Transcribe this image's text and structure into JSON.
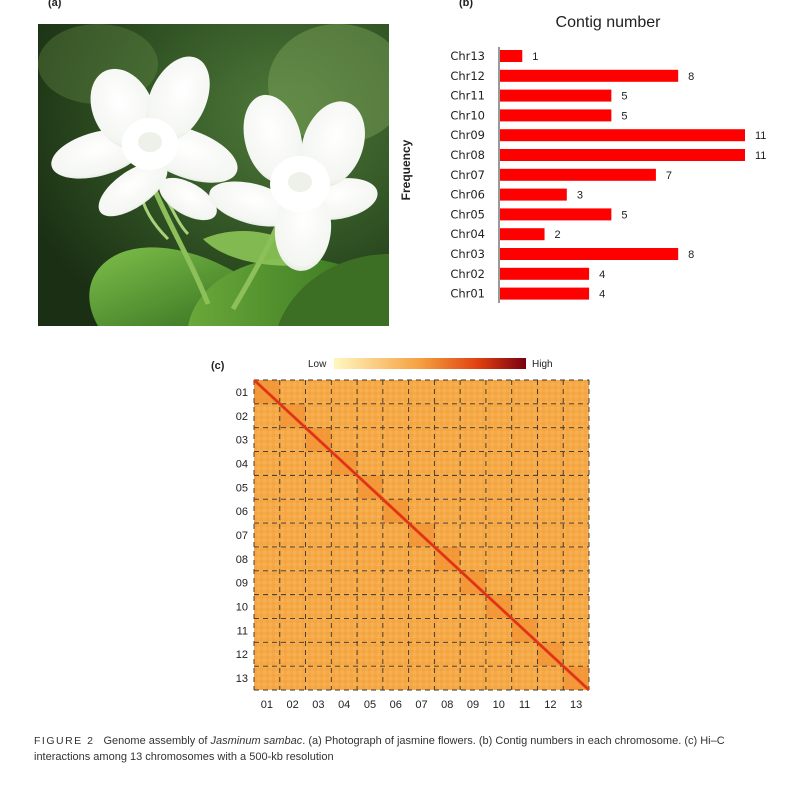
{
  "panel_a": {
    "label": "(a)",
    "image": "jasmine-flowers-photo"
  },
  "panel_b": {
    "label": "(b)"
  },
  "panel_c": {
    "label": "(c)"
  },
  "chart_data": [
    {
      "type": "bar",
      "orientation": "horizontal",
      "title": "Contig number",
      "ylabel": "Frequency",
      "categories": [
        "Chr13",
        "Chr12",
        "Chr11",
        "Chr10",
        "Chr09",
        "Chr08",
        "Chr07",
        "Chr06",
        "Chr05",
        "Chr04",
        "Chr03",
        "Chr02",
        "Chr01"
      ],
      "values": [
        1,
        8,
        5,
        5,
        11,
        11,
        7,
        3,
        5,
        2,
        8,
        4,
        4
      ],
      "xlim": [
        0,
        11
      ],
      "bar_color": "#ff0000",
      "data_labels": true
    },
    {
      "type": "heatmap",
      "legend": {
        "low_label": "Low",
        "high_label": "High",
        "colors": [
          "#fff7c0",
          "#f5a040",
          "#e04010",
          "#7a0010"
        ]
      },
      "row_labels": [
        "01",
        "02",
        "03",
        "04",
        "05",
        "06",
        "07",
        "08",
        "09",
        "10",
        "11",
        "12",
        "13"
      ],
      "col_labels": [
        "01",
        "02",
        "03",
        "04",
        "05",
        "06",
        "07",
        "08",
        "09",
        "10",
        "11",
        "12",
        "13"
      ],
      "diagonal_color": "#e8401a",
      "background_color": "#f6a947",
      "grid_style": "dashed"
    }
  ],
  "caption": {
    "figure_number": "FIGURE 2",
    "text_before_italic": "Genome assembly of ",
    "italic": "Jasminum sambac",
    "text_after_italic": ". (a) Photograph of jasmine flowers. (b) Contig numbers in each chromosome. (c) Hi–C interactions among 13 chromosomes with a 500-kb resolution"
  }
}
